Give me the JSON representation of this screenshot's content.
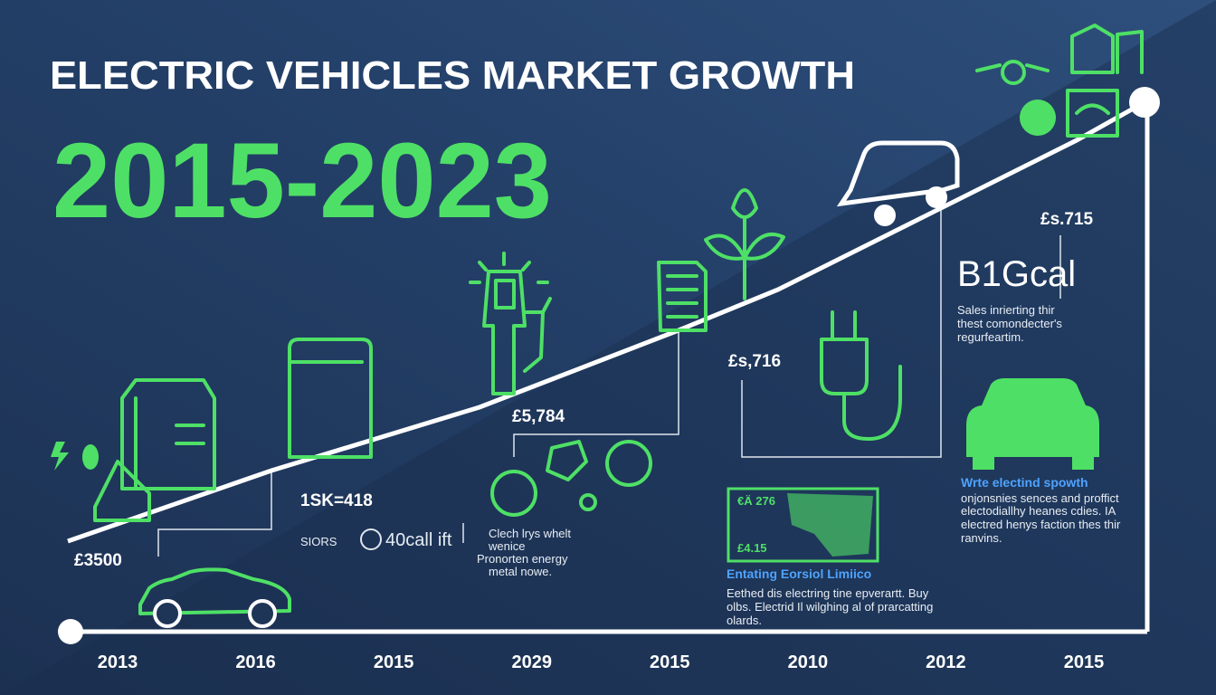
{
  "header": {
    "title": "ELECTRIC VEHICLES MARKET GROWTH",
    "subtitle": "2015-2023"
  },
  "timeline": {
    "labels": [
      "2013",
      "2016",
      "2015",
      "2029",
      "2015",
      "2010",
      "2012",
      "2015"
    ]
  },
  "callouts": [
    {
      "value": "£3500"
    },
    {
      "value": "1SK=418",
      "caption": [
        "SIORS",
        "40call ift"
      ]
    },
    {
      "value": "£5,784",
      "lines": [
        "Clech lrys whelt",
        "wenice",
        "Pronorten energy",
        "metal nowe."
      ]
    },
    {
      "value": "£s,716"
    },
    {
      "value": "£s.715",
      "big": "B1Gcal",
      "lines": [
        "Sales inrierting thir",
        "thest comondecter's",
        "regurfeartim."
      ]
    },
    {
      "heading": "Wrte electind spowth",
      "lines": [
        "onjonsnies sences and proffict",
        "electodiallhy heanes cdies. IA",
        "electred henys faction thes thir",
        "ranvins."
      ]
    },
    {
      "map": [
        "€Ä 276",
        "£4.15"
      ],
      "heading": "Entating Eorsiol Limiico",
      "lines": [
        "Eethed dis electring tine epverartt. Buy",
        "olbs. Electrid Il wilghing al of prarcatting",
        "olards."
      ]
    }
  ]
}
